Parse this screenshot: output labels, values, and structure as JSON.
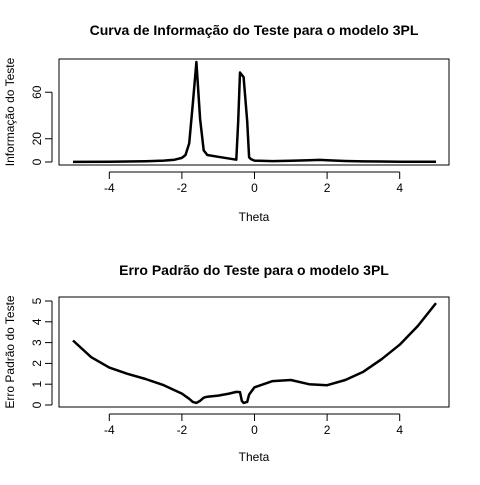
{
  "chart_data": [
    {
      "type": "line",
      "title": "Curva de Informação do Teste para o modelo 3PL",
      "xlabel": "Theta",
      "ylabel": "Informação do Teste",
      "xlim": [
        -5,
        5
      ],
      "ylim": [
        0,
        86
      ],
      "xticks": [
        -4,
        -2,
        0,
        2,
        4
      ],
      "yticks": [
        0,
        20,
        60
      ],
      "grid": false,
      "x": [
        -5.0,
        -4.0,
        -3.0,
        -2.5,
        -2.2,
        -2.0,
        -1.9,
        -1.8,
        -1.7,
        -1.6,
        -1.5,
        -1.4,
        -1.3,
        -1.0,
        -0.5,
        -0.45,
        -0.4,
        -0.3,
        -0.2,
        -0.15,
        -0.1,
        0.0,
        0.5,
        1.0,
        1.5,
        1.8,
        2.0,
        2.5,
        3.0,
        4.0,
        5.0
      ],
      "y": [
        0.1,
        0.3,
        0.7,
        1.2,
        2.0,
        3.5,
        6.0,
        16.0,
        50.0,
        86.0,
        37.0,
        10.0,
        6.0,
        4.5,
        2.0,
        35.0,
        77.0,
        73.0,
        35.0,
        4.0,
        2.5,
        1.2,
        0.8,
        1.0,
        1.5,
        1.8,
        1.5,
        0.9,
        0.5,
        0.3,
        0.2
      ]
    },
    {
      "type": "line",
      "title": "Erro Padrão do Teste para o modelo 3PL",
      "xlabel": "Theta",
      "ylabel": "Erro Padrão do Teste",
      "xlim": [
        -5,
        5
      ],
      "ylim": [
        0,
        5
      ],
      "xticks": [
        -4,
        -2,
        0,
        2,
        4
      ],
      "yticks": [
        0,
        1,
        2,
        3,
        4,
        5
      ],
      "grid": false,
      "x": [
        -5.0,
        -4.5,
        -4.0,
        -3.5,
        -3.0,
        -2.5,
        -2.0,
        -1.8,
        -1.7,
        -1.6,
        -1.5,
        -1.4,
        -1.3,
        -1.0,
        -0.7,
        -0.5,
        -0.4,
        -0.35,
        -0.3,
        -0.2,
        -0.15,
        -0.1,
        0.0,
        0.5,
        1.0,
        1.5,
        2.0,
        2.5,
        3.0,
        3.5,
        4.0,
        4.5,
        5.0
      ],
      "y": [
        3.1,
        2.3,
        1.8,
        1.5,
        1.25,
        0.95,
        0.55,
        0.3,
        0.15,
        0.1,
        0.2,
        0.35,
        0.4,
        0.45,
        0.55,
        0.63,
        0.62,
        0.2,
        0.1,
        0.15,
        0.5,
        0.62,
        0.85,
        1.15,
        1.2,
        1.0,
        0.95,
        1.2,
        1.6,
        2.2,
        2.9,
        3.8,
        4.9
      ]
    }
  ]
}
